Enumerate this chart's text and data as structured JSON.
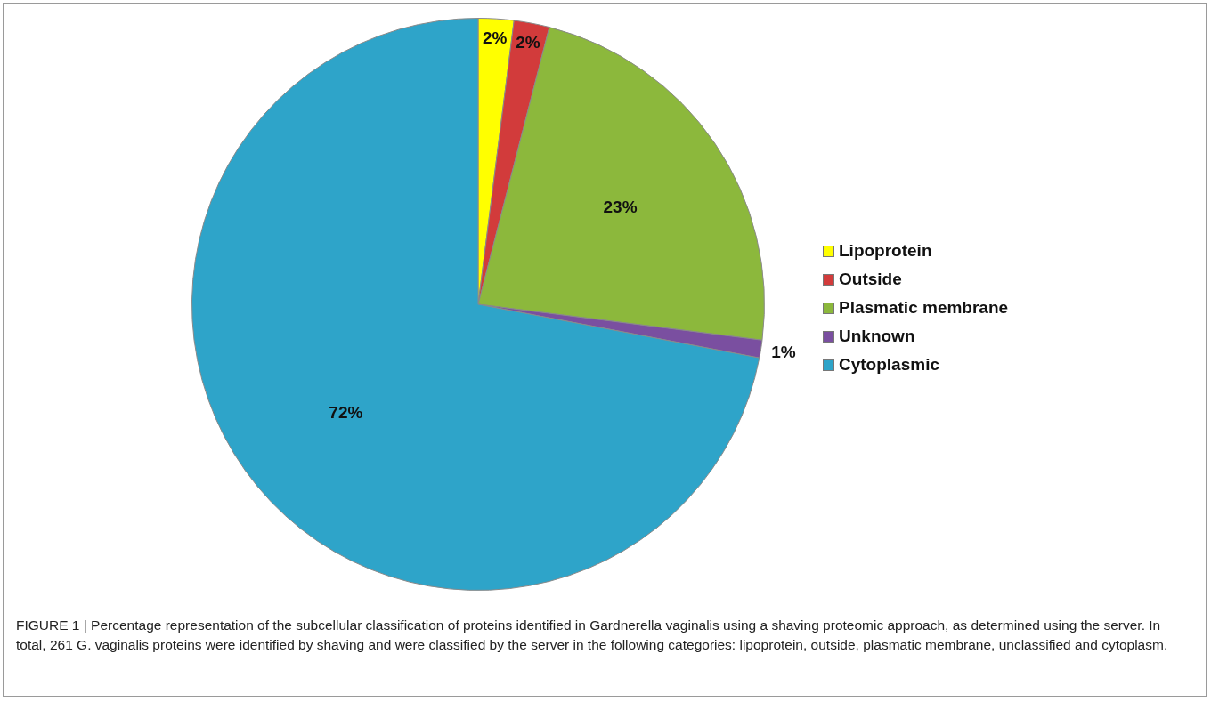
{
  "chart_data": {
    "type": "pie",
    "categories": [
      "Lipoprotein",
      "Outside",
      "Plasmatic membrane",
      "Unknown",
      "Cytoplasmic"
    ],
    "values": [
      2,
      2,
      23,
      1,
      72
    ],
    "colors": [
      "#ffff00",
      "#d23b3b",
      "#8cb83c",
      "#7a4fa0",
      "#2ea4c9"
    ],
    "value_labels": [
      "2%",
      "2%",
      "23%",
      "1%",
      "72%"
    ],
    "legend": "right",
    "annotations": [
      "FIGURE 1 | Percentage representation of the subcellular classification of proteins identified in Gardnerella vaginalis using a shaving proteomic approach, as determined using the server. In total, 261 G. vaginalis proteins were identified by shaving and were classified by the server in the following categories: lipoprotein, outside, plasmatic membrane, unclassified and cytoplasm."
    ]
  }
}
